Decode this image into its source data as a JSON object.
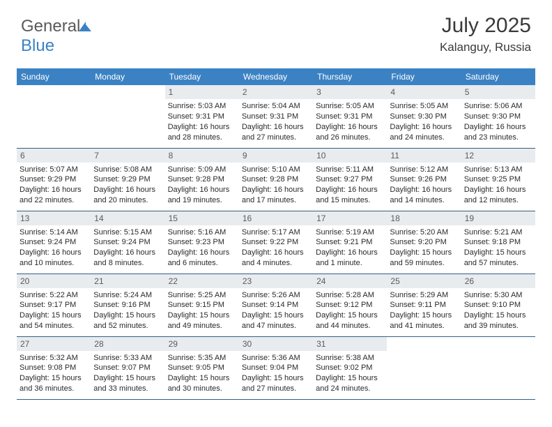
{
  "brand": {
    "part1": "General",
    "part2": "Blue"
  },
  "header": {
    "month_title": "July 2025",
    "location": "Kalanguy, Russia"
  },
  "colors": {
    "header_bg": "#3b82c4",
    "header_text": "#ffffff",
    "daynum_bg": "#e8ecef",
    "cell_border": "#355d82",
    "title_color": "#3a3a3a",
    "text_color": "#2a2a2a"
  },
  "fonts": {
    "title_size": 30,
    "location_size": 17,
    "dayheader_size": 12,
    "cell_size": 11
  },
  "calendar": {
    "day_headers": [
      "Sunday",
      "Monday",
      "Tuesday",
      "Wednesday",
      "Thursday",
      "Friday",
      "Saturday"
    ],
    "weeks": [
      [
        null,
        null,
        {
          "day": "1",
          "lines": [
            "Sunrise: 5:03 AM",
            "Sunset: 9:31 PM",
            "Daylight: 16 hours",
            "and 28 minutes."
          ]
        },
        {
          "day": "2",
          "lines": [
            "Sunrise: 5:04 AM",
            "Sunset: 9:31 PM",
            "Daylight: 16 hours",
            "and 27 minutes."
          ]
        },
        {
          "day": "3",
          "lines": [
            "Sunrise: 5:05 AM",
            "Sunset: 9:31 PM",
            "Daylight: 16 hours",
            "and 26 minutes."
          ]
        },
        {
          "day": "4",
          "lines": [
            "Sunrise: 5:05 AM",
            "Sunset: 9:30 PM",
            "Daylight: 16 hours",
            "and 24 minutes."
          ]
        },
        {
          "day": "5",
          "lines": [
            "Sunrise: 5:06 AM",
            "Sunset: 9:30 PM",
            "Daylight: 16 hours",
            "and 23 minutes."
          ]
        }
      ],
      [
        {
          "day": "6",
          "lines": [
            "Sunrise: 5:07 AM",
            "Sunset: 9:29 PM",
            "Daylight: 16 hours",
            "and 22 minutes."
          ]
        },
        {
          "day": "7",
          "lines": [
            "Sunrise: 5:08 AM",
            "Sunset: 9:29 PM",
            "Daylight: 16 hours",
            "and 20 minutes."
          ]
        },
        {
          "day": "8",
          "lines": [
            "Sunrise: 5:09 AM",
            "Sunset: 9:28 PM",
            "Daylight: 16 hours",
            "and 19 minutes."
          ]
        },
        {
          "day": "9",
          "lines": [
            "Sunrise: 5:10 AM",
            "Sunset: 9:28 PM",
            "Daylight: 16 hours",
            "and 17 minutes."
          ]
        },
        {
          "day": "10",
          "lines": [
            "Sunrise: 5:11 AM",
            "Sunset: 9:27 PM",
            "Daylight: 16 hours",
            "and 15 minutes."
          ]
        },
        {
          "day": "11",
          "lines": [
            "Sunrise: 5:12 AM",
            "Sunset: 9:26 PM",
            "Daylight: 16 hours",
            "and 14 minutes."
          ]
        },
        {
          "day": "12",
          "lines": [
            "Sunrise: 5:13 AM",
            "Sunset: 9:25 PM",
            "Daylight: 16 hours",
            "and 12 minutes."
          ]
        }
      ],
      [
        {
          "day": "13",
          "lines": [
            "Sunrise: 5:14 AM",
            "Sunset: 9:24 PM",
            "Daylight: 16 hours",
            "and 10 minutes."
          ]
        },
        {
          "day": "14",
          "lines": [
            "Sunrise: 5:15 AM",
            "Sunset: 9:24 PM",
            "Daylight: 16 hours",
            "and 8 minutes."
          ]
        },
        {
          "day": "15",
          "lines": [
            "Sunrise: 5:16 AM",
            "Sunset: 9:23 PM",
            "Daylight: 16 hours",
            "and 6 minutes."
          ]
        },
        {
          "day": "16",
          "lines": [
            "Sunrise: 5:17 AM",
            "Sunset: 9:22 PM",
            "Daylight: 16 hours",
            "and 4 minutes."
          ]
        },
        {
          "day": "17",
          "lines": [
            "Sunrise: 5:19 AM",
            "Sunset: 9:21 PM",
            "Daylight: 16 hours",
            "and 1 minute."
          ]
        },
        {
          "day": "18",
          "lines": [
            "Sunrise: 5:20 AM",
            "Sunset: 9:20 PM",
            "Daylight: 15 hours",
            "and 59 minutes."
          ]
        },
        {
          "day": "19",
          "lines": [
            "Sunrise: 5:21 AM",
            "Sunset: 9:18 PM",
            "Daylight: 15 hours",
            "and 57 minutes."
          ]
        }
      ],
      [
        {
          "day": "20",
          "lines": [
            "Sunrise: 5:22 AM",
            "Sunset: 9:17 PM",
            "Daylight: 15 hours",
            "and 54 minutes."
          ]
        },
        {
          "day": "21",
          "lines": [
            "Sunrise: 5:24 AM",
            "Sunset: 9:16 PM",
            "Daylight: 15 hours",
            "and 52 minutes."
          ]
        },
        {
          "day": "22",
          "lines": [
            "Sunrise: 5:25 AM",
            "Sunset: 9:15 PM",
            "Daylight: 15 hours",
            "and 49 minutes."
          ]
        },
        {
          "day": "23",
          "lines": [
            "Sunrise: 5:26 AM",
            "Sunset: 9:14 PM",
            "Daylight: 15 hours",
            "and 47 minutes."
          ]
        },
        {
          "day": "24",
          "lines": [
            "Sunrise: 5:28 AM",
            "Sunset: 9:12 PM",
            "Daylight: 15 hours",
            "and 44 minutes."
          ]
        },
        {
          "day": "25",
          "lines": [
            "Sunrise: 5:29 AM",
            "Sunset: 9:11 PM",
            "Daylight: 15 hours",
            "and 41 minutes."
          ]
        },
        {
          "day": "26",
          "lines": [
            "Sunrise: 5:30 AM",
            "Sunset: 9:10 PM",
            "Daylight: 15 hours",
            "and 39 minutes."
          ]
        }
      ],
      [
        {
          "day": "27",
          "lines": [
            "Sunrise: 5:32 AM",
            "Sunset: 9:08 PM",
            "Daylight: 15 hours",
            "and 36 minutes."
          ]
        },
        {
          "day": "28",
          "lines": [
            "Sunrise: 5:33 AM",
            "Sunset: 9:07 PM",
            "Daylight: 15 hours",
            "and 33 minutes."
          ]
        },
        {
          "day": "29",
          "lines": [
            "Sunrise: 5:35 AM",
            "Sunset: 9:05 PM",
            "Daylight: 15 hours",
            "and 30 minutes."
          ]
        },
        {
          "day": "30",
          "lines": [
            "Sunrise: 5:36 AM",
            "Sunset: 9:04 PM",
            "Daylight: 15 hours",
            "and 27 minutes."
          ]
        },
        {
          "day": "31",
          "lines": [
            "Sunrise: 5:38 AM",
            "Sunset: 9:02 PM",
            "Daylight: 15 hours",
            "and 24 minutes."
          ]
        },
        null,
        null
      ]
    ]
  }
}
